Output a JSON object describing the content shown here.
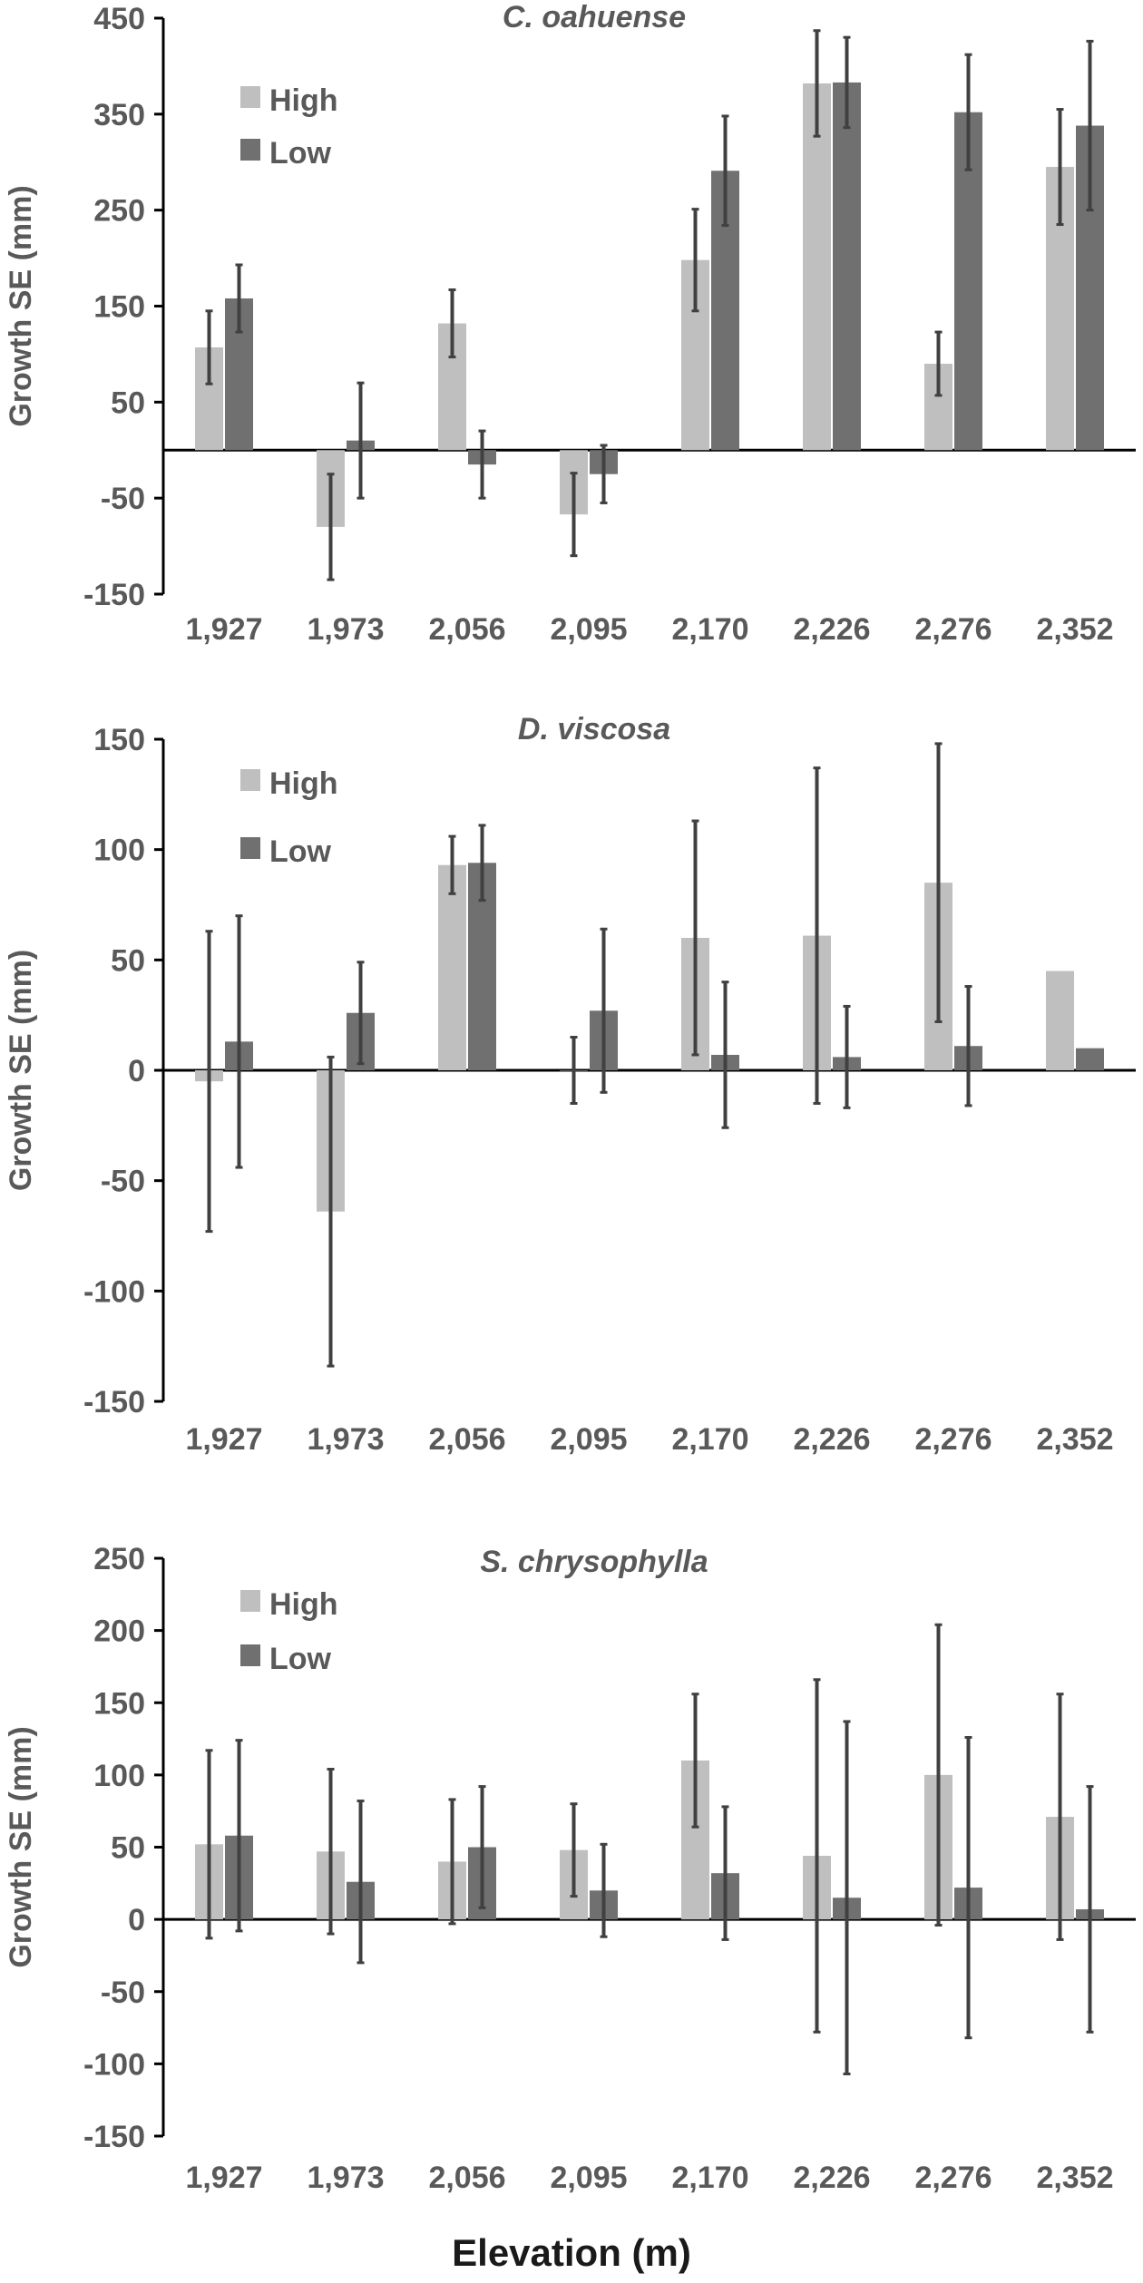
{
  "figure": {
    "x_axis_title": "Elevation (m)",
    "colors": {
      "High": "#bfbfbf",
      "Low": "#707070",
      "axis": "#000000",
      "text": "#595959",
      "errorbar": "#404040"
    }
  },
  "chart_data": [
    {
      "type": "bar",
      "title": "C. oahuense",
      "ylabel": "Growth SE (mm)",
      "xlabel": "Elevation (m)",
      "ylim": [
        -150,
        450
      ],
      "yticks": [
        450,
        350,
        250,
        150,
        50,
        -50,
        -150
      ],
      "categories": [
        "1,927",
        "1,973",
        "2,056",
        "2,095",
        "2,170",
        "2,226",
        "2,276",
        "2,352"
      ],
      "series": [
        {
          "name": "High",
          "values": [
            107,
            -80,
            132,
            -67,
            198,
            382,
            90,
            295
          ],
          "error": [
            38,
            55,
            35,
            43,
            53,
            55,
            33,
            60
          ]
        },
        {
          "name": "Low",
          "values": [
            158,
            10,
            -15,
            -25,
            291,
            383,
            352,
            338
          ],
          "error": [
            35,
            60,
            35,
            30,
            57,
            47,
            60,
            88
          ]
        }
      ],
      "legend": "upper-left",
      "grid": false
    },
    {
      "type": "bar",
      "title": "D. viscosa",
      "ylabel": "Growth SE (mm)",
      "xlabel": "Elevation (m)",
      "ylim": [
        -150,
        150
      ],
      "yticks": [
        150,
        100,
        50,
        0,
        -50,
        -100,
        -150
      ],
      "categories": [
        "1,927",
        "1,973",
        "2,056",
        "2,095",
        "2,170",
        "2,226",
        "2,276",
        "2,352"
      ],
      "series": [
        {
          "name": "High",
          "values": [
            -5,
            -64,
            93,
            0,
            60,
            61,
            85,
            45
          ],
          "error": [
            68,
            70,
            13,
            15,
            53,
            76,
            63,
            null
          ]
        },
        {
          "name": "Low",
          "values": [
            13,
            26,
            94,
            27,
            7,
            6,
            11,
            10
          ],
          "error": [
            57,
            23,
            17,
            37,
            33,
            23,
            27,
            null
          ]
        }
      ],
      "legend": "upper-left",
      "grid": false
    },
    {
      "type": "bar",
      "title": "S. chrysophylla",
      "ylabel": "Growth SE (mm)",
      "xlabel": "Elevation (m)",
      "ylim": [
        -150,
        250
      ],
      "yticks": [
        250,
        200,
        150,
        100,
        50,
        0,
        -50,
        -100,
        -150
      ],
      "categories": [
        "1,927",
        "1,973",
        "2,056",
        "2,095",
        "2,170",
        "2,226",
        "2,276",
        "2,352"
      ],
      "series": [
        {
          "name": "High",
          "values": [
            52,
            47,
            40,
            48,
            110,
            44,
            100,
            71
          ],
          "error": [
            65,
            57,
            43,
            32,
            46,
            122,
            104,
            85
          ]
        },
        {
          "name": "Low",
          "values": [
            58,
            26,
            50,
            20,
            32,
            15,
            22,
            7
          ],
          "error": [
            66,
            56,
            42,
            32,
            46,
            122,
            104,
            85
          ]
        }
      ],
      "legend": "upper-left",
      "grid": false
    }
  ]
}
